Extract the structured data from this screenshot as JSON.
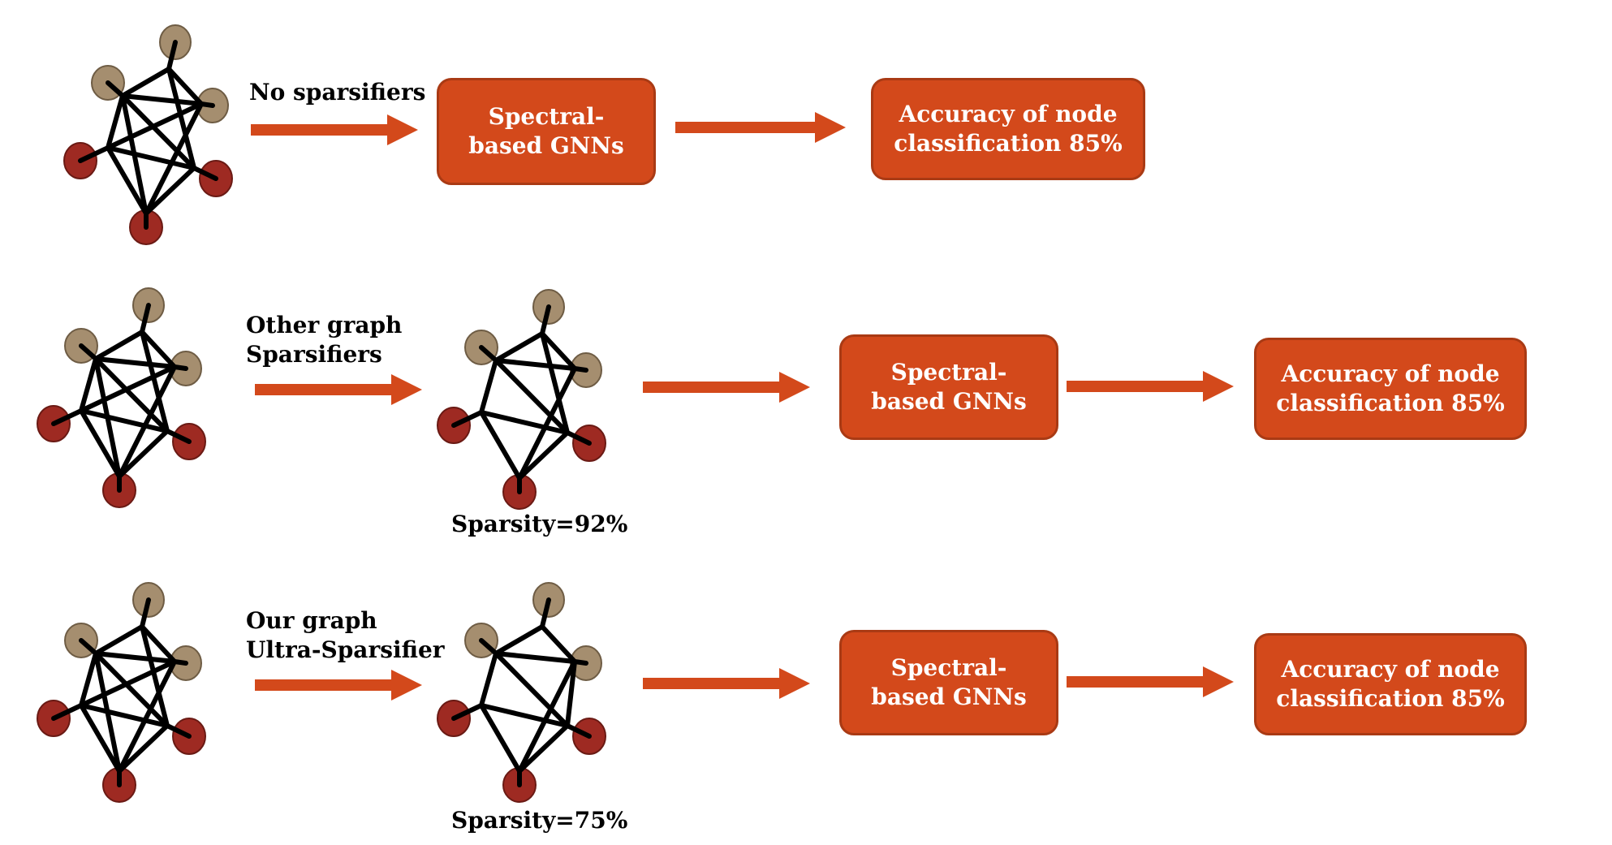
{
  "colors": {
    "arrow": "#D3491B",
    "box_fill": "#D3491B",
    "box_border": "#A93A14",
    "node_tan": "#A58E6F",
    "node_red": "#9E2A22",
    "edge": "#000000"
  },
  "rows": [
    {
      "method_label": [
        "No sparsifiers"
      ],
      "gnn_box": [
        "Spectral-",
        "based GNNs"
      ],
      "result_box": [
        "Accuracy of node",
        "classification 85%"
      ]
    },
    {
      "method_label": [
        "Other graph",
        "Sparsifiers"
      ],
      "sparsity": "Sparsity=92%",
      "gnn_box": [
        "Spectral-",
        "based GNNs"
      ],
      "result_box": [
        "Accuracy of node",
        "classification 85%"
      ]
    },
    {
      "method_label": [
        "Our graph",
        "Ultra-Sparsifier"
      ],
      "sparsity": "Sparsity=75%",
      "gnn_box": [
        "Spectral-",
        "based GNNs"
      ],
      "result_box": [
        "Accuracy of node",
        "classification 85%"
      ]
    }
  ]
}
